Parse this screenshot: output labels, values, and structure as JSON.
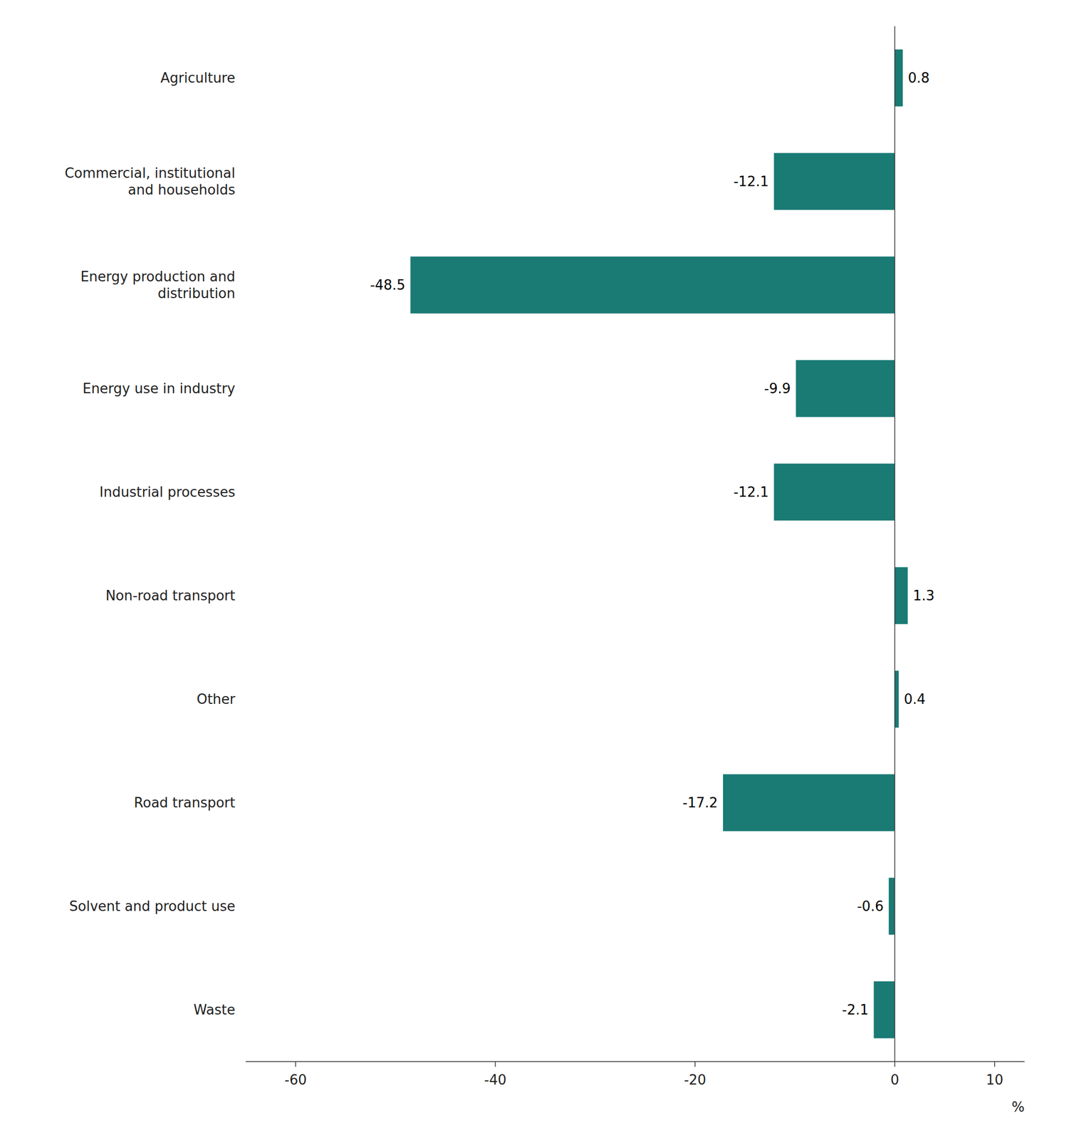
{
  "chart_data": {
    "type": "bar",
    "orientation": "horizontal",
    "categories": [
      "Agriculture",
      "Commercial, institutional\nand households",
      "Energy production and\ndistribution",
      "Energy use in industry",
      "Industrial processes",
      "Non-road transport",
      "Other",
      "Road transport",
      "Solvent and product use",
      "Waste"
    ],
    "values": [
      0.8,
      -12.1,
      -48.5,
      -9.9,
      -12.1,
      1.3,
      0.4,
      -17.2,
      -0.6,
      -2.1
    ],
    "color": "#1a7a74",
    "x_label": "%",
    "xlim": [
      -65,
      13
    ],
    "xticks": [
      -60,
      -40,
      -20,
      0,
      10
    ],
    "grid": false,
    "data_labels": true
  }
}
